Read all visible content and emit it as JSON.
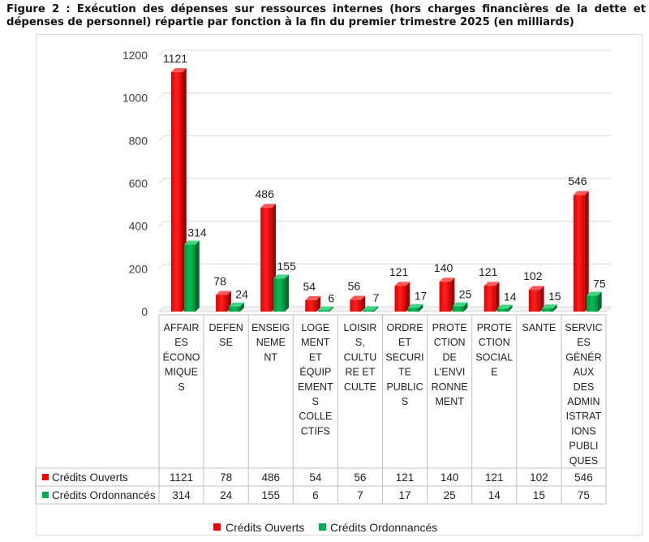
{
  "title": "Figure 2 : Exécution des dépenses sur ressources internes (hors charges financières de la dette et dépenses de personnel) répartie par fonction à la fin du premier trimestre 2025 (en milliards)",
  "colors": {
    "ouverts": "#ff0000",
    "ordonnances": "#00b050",
    "grid": "#d9d9d9",
    "text": "#404040"
  },
  "chart_data": {
    "type": "bar",
    "title": "Figure 2 : Exécution des dépenses sur ressources internes (hors charges financières de la dette et dépenses de personnel) répartie par fonction à la fin du premier trimestre 2025 (en milliards)",
    "categories": [
      [
        "AFFAIR",
        "ES",
        "ÉCONO",
        "MIQUE",
        "S"
      ],
      [
        "DEFEN",
        "SE"
      ],
      [
        "ENSEIG",
        "NEME",
        "NT"
      ],
      [
        "LOGE",
        "MENT",
        "ET",
        "ÉQUIP",
        "EMENT",
        "S",
        "COLLE",
        "CTIFS"
      ],
      [
        "LOISIR",
        "S,",
        "CULTU",
        "RE ET",
        "CULTE"
      ],
      [
        "ORDRE",
        "ET",
        "SECURI",
        "TE",
        "PUBLIC",
        "S"
      ],
      [
        "PROTE",
        "CTION",
        "DE",
        "L'ENVI",
        "RONNE",
        "MENT"
      ],
      [
        "PROTE",
        "CTION",
        "SOCIAL",
        "E"
      ],
      [
        "SANTE"
      ],
      [
        "SERVIC",
        "ES",
        "GÉNÉR",
        "AUX",
        "DES",
        "ADMIN",
        "ISTRAT",
        "IONS",
        "PUBLI",
        "QUES"
      ]
    ],
    "series": [
      {
        "name": "Crédits Ouverts",
        "values": [
          1121,
          78,
          486,
          54,
          56,
          121,
          140,
          121,
          102,
          546
        ]
      },
      {
        "name": "Crédits Ordonnancés",
        "values": [
          314,
          24,
          155,
          6,
          7,
          17,
          25,
          14,
          15,
          75
        ]
      }
    ],
    "y_ticks": [
      0,
      200,
      400,
      600,
      800,
      1000,
      1200
    ],
    "ylim": [
      0,
      1200
    ],
    "grid": true,
    "legend_position": "bottom",
    "data_table": true
  }
}
